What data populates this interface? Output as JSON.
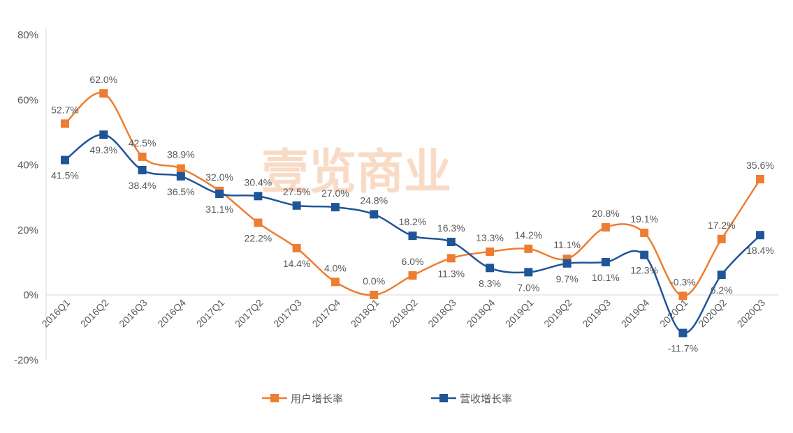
{
  "chart_data": {
    "type": "line",
    "smooth": true,
    "categories": [
      "2016Q1",
      "2016Q2",
      "2016Q3",
      "2016Q4",
      "2017Q1",
      "2017Q2",
      "2017Q3",
      "2017Q4",
      "2018Q1",
      "2018Q2",
      "2018Q3",
      "2018Q4",
      "2019Q1",
      "2019Q2",
      "2019Q3",
      "2019Q4",
      "2020Q1",
      "2020Q2",
      "2020Q3"
    ],
    "series": [
      {
        "name": "用户增长率",
        "color": "#ED7D31",
        "values": [
          52.7,
          62.0,
          42.5,
          38.9,
          32.0,
          22.2,
          14.4,
          4.0,
          0.0,
          6.0,
          11.3,
          13.3,
          14.2,
          11.1,
          20.8,
          19.1,
          -0.3,
          17.2,
          35.6
        ]
      },
      {
        "name": "营收增长率",
        "color": "#1F5597",
        "values": [
          41.5,
          49.3,
          38.4,
          36.5,
          31.1,
          30.4,
          27.5,
          27.0,
          24.8,
          18.2,
          16.3,
          8.3,
          7.0,
          9.7,
          10.1,
          12.3,
          -11.7,
          6.2,
          18.4
        ]
      }
    ],
    "ylim": [
      -20,
      80
    ],
    "yticks": [
      "-20%",
      "0%",
      "20%",
      "40%",
      "60%",
      "80%"
    ],
    "ytick_values": [
      -20,
      0,
      20,
      40,
      60,
      80
    ],
    "value_suffix": "%",
    "grid": false,
    "legend": "bottom",
    "watermark": "壹览商业"
  }
}
